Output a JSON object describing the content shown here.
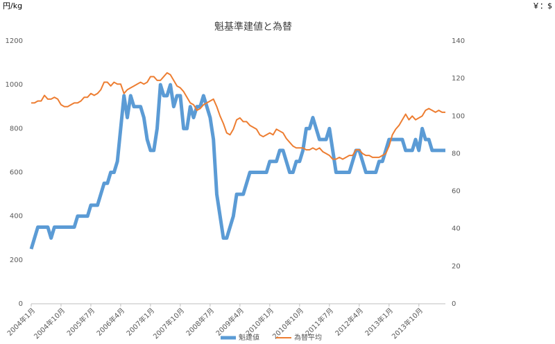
{
  "chart_data": {
    "type": "line",
    "title": "魁基準建値と為替",
    "y_label": "円/kg",
    "y2_label": "￥：$",
    "categories": [
      "2004年1月",
      null,
      null,
      null,
      null,
      null,
      null,
      null,
      null,
      "2004年10月",
      null,
      null,
      null,
      null,
      null,
      null,
      null,
      null,
      "2005年7月",
      null,
      null,
      null,
      null,
      null,
      null,
      null,
      null,
      "2006年4月",
      null,
      null,
      null,
      null,
      null,
      null,
      null,
      null,
      "2007年1月",
      null,
      null,
      null,
      null,
      null,
      null,
      null,
      null,
      "2007年10月",
      null,
      null,
      null,
      null,
      null,
      null,
      null,
      null,
      "2008年7月",
      null,
      null,
      null,
      null,
      null,
      null,
      null,
      null,
      "2009年4月",
      null,
      null,
      null,
      null,
      null,
      null,
      null,
      null,
      "2010年1月",
      null,
      null,
      null,
      null,
      null,
      null,
      null,
      null,
      "2010年10月",
      null,
      null,
      null,
      null,
      null,
      null,
      null,
      null,
      "2011年7月",
      null,
      null,
      null,
      null,
      null,
      null,
      null,
      null,
      "2012年4月",
      null,
      null,
      null,
      null,
      null,
      null,
      null,
      null,
      "2013年1月",
      null,
      null,
      null,
      null,
      null,
      null,
      null,
      null,
      "2013年10月",
      null,
      null,
      null,
      null,
      null,
      null,
      null,
      null
    ],
    "series": [
      {
        "name": "魁建値",
        "color": "#5b9bd5",
        "axis": "y",
        "values": [
          250,
          300,
          350,
          350,
          350,
          350,
          300,
          350,
          350,
          350,
          350,
          350,
          350,
          350,
          400,
          400,
          400,
          400,
          450,
          450,
          450,
          500,
          550,
          550,
          600,
          600,
          650,
          800,
          950,
          850,
          950,
          900,
          900,
          900,
          850,
          750,
          700,
          700,
          800,
          1000,
          950,
          950,
          1000,
          900,
          950,
          950,
          800,
          800,
          900,
          850,
          900,
          900,
          950,
          900,
          850,
          750,
          500,
          400,
          300,
          300,
          350,
          400,
          500,
          500,
          500,
          550,
          600,
          600,
          600,
          600,
          600,
          600,
          650,
          650,
          650,
          700,
          700,
          650,
          600,
          600,
          650,
          650,
          700,
          800,
          800,
          850,
          800,
          750,
          750,
          750,
          800,
          700,
          600,
          600,
          600,
          600,
          600,
          650,
          700,
          700,
          650,
          600,
          600,
          600,
          600,
          650,
          650,
          700,
          750,
          750,
          750,
          750,
          750,
          700,
          700,
          700,
          750,
          700,
          800,
          750,
          750,
          700,
          700,
          700,
          700,
          700
        ]
      },
      {
        "name": "為替平均",
        "color": "#ed7d31",
        "axis": "y2",
        "values": [
          107,
          107,
          108,
          108,
          111,
          109,
          109,
          110,
          109,
          106,
          105,
          105,
          106,
          107,
          107,
          108,
          110,
          110,
          112,
          111,
          112,
          114,
          118,
          118,
          116,
          118,
          117,
          117,
          112,
          114,
          115,
          116,
          117,
          118,
          117,
          118,
          121,
          121,
          119,
          119,
          121,
          123,
          122,
          119,
          116,
          115,
          113,
          110,
          107,
          106,
          103,
          104,
          106,
          107,
          108,
          109,
          105,
          100,
          96,
          91,
          90,
          93,
          98,
          99,
          97,
          97,
          95,
          94,
          93,
          90,
          89,
          90,
          91,
          90,
          93,
          92,
          91,
          88,
          86,
          84,
          83,
          83,
          83,
          82,
          82,
          83,
          82,
          83,
          81,
          80,
          79,
          77,
          77,
          78,
          77,
          78,
          79,
          79,
          82,
          82,
          80,
          79,
          79,
          78,
          78,
          78,
          79,
          80,
          84,
          90,
          93,
          95,
          98,
          101,
          98,
          100,
          98,
          99,
          100,
          103,
          104,
          103,
          102,
          103,
          102,
          102
        ]
      }
    ],
    "ylim": [
      0,
      1200
    ],
    "yticks": [
      0,
      200,
      400,
      600,
      800,
      1000,
      1200
    ],
    "y2lim": [
      0,
      140
    ],
    "y2ticks": [
      0,
      20,
      40,
      60,
      80,
      100,
      120,
      140
    ],
    "grid": false,
    "legend": "bottom"
  }
}
